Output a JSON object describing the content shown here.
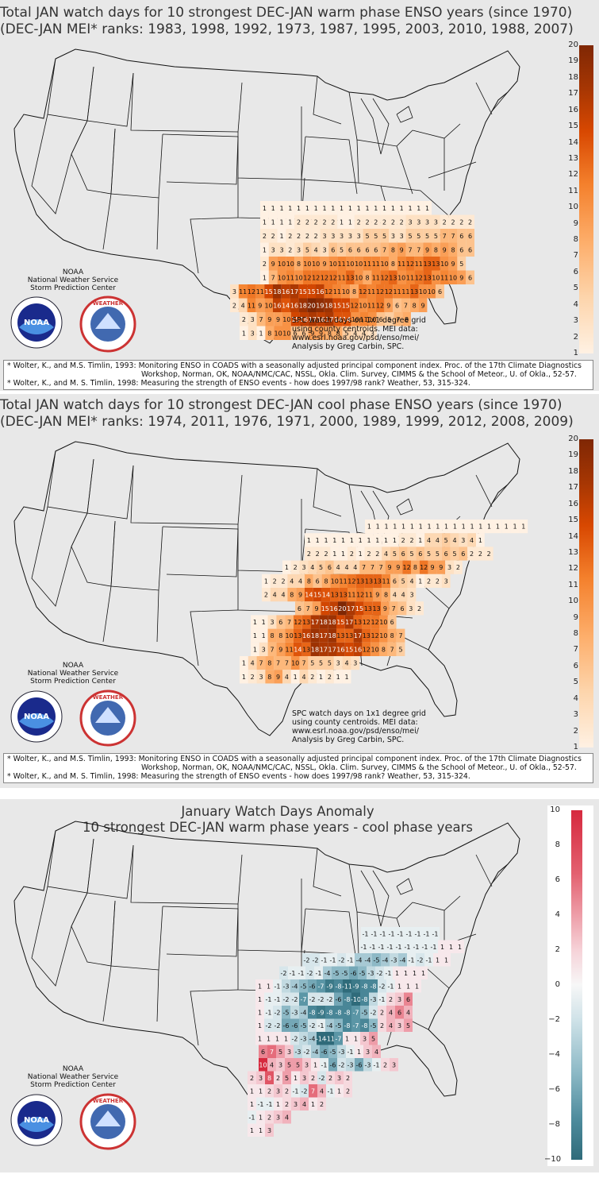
{
  "panels": [
    {
      "title_line1": "Total JAN watch days for 10 strongest DEC-JAN warm phase ENSO years (since 1970)",
      "title_line2": "(DEC-JAN MEI* ranks: 1983, 1998, 1992, 1973, 1987, 1995, 2003, 2010, 1988, 2007)",
      "colorbar_ticks": [
        "20",
        "19",
        "18",
        "17",
        "16",
        "15",
        "14",
        "13",
        "12",
        "11",
        "10",
        "9",
        "8",
        "7",
        "6",
        "5",
        "4",
        "3",
        "2",
        "1"
      ],
      "colormap": [
        "#fff1e3",
        "#fdd5ac",
        "#fdae6b",
        "#f4802c",
        "#d84801",
        "#a63603",
        "#7f2704"
      ],
      "noaa_lines": [
        "NOAA",
        "National Weather Service",
        "Storm Prediction Center"
      ],
      "credit": "SPC watch days on 1x1 degree grid\nusing county centroids. MEI data:\nwww.esrl.noaa.gov/psd/enso/mei/\nAnalysis by Greg Carbin, SPC.",
      "ref1": "* Wolter, K., and M.S. Timlin, 1993: Monitoring ENSO in COADS with a seasonally adjusted principal component index. Proc. of the 17th Climate Diagnostics",
      "ref1b": "Workshop, Norman, OK, NOAA/NMC/CAC, NSSL, Okla. Clim. Survey, CIMMS & the School of Meteor., U. of Okla., 52-57.",
      "ref2": "* Wolter, K., and M. S. Timlin, 1998: Measuring the strength of ENSO events - how does 1997/98 rank? Weather, 53, 315-324.",
      "cells": [
        [
          1,
          1,
          1,
          1,
          1,
          1,
          1,
          1,
          1,
          1,
          1,
          1,
          1,
          1,
          1,
          1,
          1,
          1,
          1,
          1
        ],
        [
          1,
          1,
          1,
          1,
          2,
          2,
          2,
          2,
          2,
          1,
          1,
          2,
          2,
          2,
          2,
          2,
          2,
          3,
          3,
          3,
          3,
          2,
          2,
          2,
          2
        ],
        [
          2,
          2,
          1,
          2,
          2,
          2,
          2,
          3,
          3,
          3,
          3,
          3,
          5,
          5,
          5,
          3,
          3,
          5,
          5,
          5,
          5,
          7,
          7,
          6,
          6
        ],
        [
          1,
          3,
          3,
          2,
          3,
          5,
          4,
          3,
          6,
          5,
          6,
          6,
          6,
          6,
          7,
          8,
          9,
          7,
          7,
          9,
          8,
          9,
          8,
          6,
          6
        ],
        [
          2,
          9,
          10,
          10,
          8,
          10,
          10,
          9,
          10,
          11,
          10,
          10,
          11,
          11,
          10,
          8,
          11,
          12,
          11,
          13,
          13,
          10,
          9,
          5
        ],
        [
          1,
          7,
          10,
          11,
          10,
          12,
          12,
          12,
          12,
          11,
          13,
          10,
          8,
          11,
          12,
          13,
          10,
          11,
          12,
          13,
          10,
          11,
          10,
          9,
          6
        ],
        [
          3,
          11,
          12,
          11,
          15,
          18,
          16,
          17,
          15,
          15,
          16,
          12,
          11,
          10,
          8,
          12,
          11,
          12,
          12,
          11,
          11,
          13,
          10,
          10,
          6
        ],
        [
          2,
          4,
          11,
          9,
          10,
          16,
          14,
          16,
          18,
          20,
          19,
          18,
          15,
          15,
          12,
          10,
          11,
          12,
          9,
          6,
          7,
          8,
          9
        ],
        [
          2,
          3,
          7,
          9,
          9,
          10,
          15,
          16,
          17,
          16,
          17,
          14,
          14,
          10,
          11,
          10,
          6,
          5,
          7,
          8
        ],
        [
          1,
          3,
          1,
          8,
          10,
          10,
          6,
          6,
          9,
          9,
          8,
          8,
          5,
          4,
          4,
          3
        ]
      ]
    },
    {
      "title_line1": "Total JAN watch days for 10 strongest DEC-JAN cool phase ENSO years (since 1970)",
      "title_line2": "(DEC-JAN MEI* ranks: 1974, 2011, 1976, 1971, 2000, 1989, 1999, 2012, 2008, 2009)",
      "colorbar_ticks": [
        "20",
        "19",
        "18",
        "17",
        "16",
        "15",
        "14",
        "13",
        "12",
        "11",
        "10",
        "9",
        "8",
        "7",
        "6",
        "5",
        "4",
        "3",
        "2",
        "1"
      ],
      "colormap": [
        "#fff1e3",
        "#fdd5ac",
        "#fdae6b",
        "#f4802c",
        "#d84801",
        "#a63603",
        "#7f2704"
      ],
      "noaa_lines": [
        "NOAA",
        "National Weather Service",
        "Storm Prediction Center"
      ],
      "credit": "SPC watch days on 1x1 degree grid\nusing county centroids. MEI data:\nwww.esrl.noaa.gov/psd/enso/mei/\nAnalysis by Greg Carbin, SPC.",
      "ref1": "* Wolter, K., and M.S. Timlin, 1993: Monitoring ENSO in COADS with a seasonally adjusted principal component index. Proc. of the 17th Climate Diagnostics",
      "ref1b": "Workshop, Norman, OK, NOAA/NMC/CAC, NSSL, Okla. Clim. Survey, CIMMS & the School of Meteor., U. of Okla., 52-57.",
      "ref2": "* Wolter, K., and M. S. Timlin, 1998: Measuring the strength of ENSO events - how does 1997/98 rank? Weather, 53, 315-324.",
      "cells": [
        [
          1,
          1,
          1,
          1,
          1,
          1,
          1,
          1,
          1,
          1,
          1,
          1,
          1,
          1,
          1,
          1,
          1,
          1,
          1
        ],
        [
          1,
          1,
          1,
          1,
          1,
          1,
          1,
          1,
          1,
          1,
          1,
          2,
          2,
          1,
          4,
          4,
          5,
          4,
          3,
          4,
          1
        ],
        [
          2,
          2,
          2,
          1,
          1,
          2,
          1,
          2,
          2,
          4,
          5,
          6,
          5,
          6,
          5,
          5,
          6,
          5,
          6,
          2,
          2,
          2
        ],
        [
          1,
          2,
          3,
          4,
          5,
          6,
          4,
          4,
          4,
          7,
          7,
          7,
          9,
          9,
          12,
          8,
          12,
          9,
          9,
          3,
          2
        ],
        [
          1,
          2,
          2,
          4,
          4,
          8,
          6,
          8,
          10,
          11,
          12,
          13,
          13,
          13,
          11,
          6,
          5,
          4,
          1,
          2,
          2,
          3
        ],
        [
          2,
          4,
          4,
          8,
          9,
          14,
          15,
          14,
          13,
          13,
          11,
          12,
          11,
          9,
          8,
          4,
          4,
          3
        ],
        [
          6,
          7,
          9,
          15,
          16,
          20,
          17,
          15,
          13,
          13,
          9,
          7,
          6,
          3,
          2
        ],
        [
          1,
          1,
          3,
          6,
          7,
          12,
          13,
          17,
          18,
          18,
          15,
          17,
          13,
          12,
          12,
          10,
          6
        ],
        [
          1,
          1,
          8,
          8,
          10,
          13,
          16,
          18,
          17,
          18,
          13,
          13,
          17,
          13,
          12,
          10,
          8,
          7
        ],
        [
          1,
          3,
          7,
          9,
          11,
          14,
          13,
          18,
          17,
          17,
          16,
          15,
          16,
          12,
          10,
          8,
          7,
          5
        ],
        [
          1,
          4,
          7,
          8,
          7,
          7,
          10,
          7,
          5,
          5,
          5,
          3,
          4,
          3
        ],
        [
          1,
          2,
          3,
          8,
          9,
          4,
          1,
          4,
          2,
          1,
          2,
          1,
          1
        ]
      ]
    },
    {
      "title_line1": "January Watch Days Anomaly",
      "title_line2": "10 strongest DEC-JAN warm phase years - cool phase years",
      "colorbar_ticks": [
        "10",
        "8",
        "6",
        "4",
        "2",
        "0",
        "−2",
        "−4",
        "−6",
        "−8",
        "−10"
      ],
      "colormap_pos": [
        "#f7f7f7",
        "#f6d2d8",
        "#ee9da9",
        "#e3606f",
        "#d6293e"
      ],
      "colormap_neg": [
        "#f7f7f7",
        "#cfe2e8",
        "#8db9c6",
        "#4f8d9e",
        "#2f6b7a"
      ],
      "noaa_lines": [
        "NOAA",
        "National Weather Service",
        "Storm Prediction Center"
      ],
      "cells": [
        [
          -1,
          -1,
          -1,
          -1,
          -1,
          -1,
          -1,
          -1,
          -1
        ],
        [
          -1,
          -1,
          -1,
          -1,
          -1,
          -1,
          -1,
          -1,
          -1,
          1,
          1,
          1
        ],
        [
          -2,
          -2,
          -1,
          -1,
          -2,
          -1,
          -4,
          -4,
          -5,
          -4,
          -3,
          -4,
          -1,
          -2,
          -1,
          1,
          1
        ],
        [
          -2,
          -1,
          -1,
          -2,
          -1,
          -4,
          -5,
          -5,
          -6,
          -5,
          -3,
          -2,
          -1,
          1,
          1,
          1,
          1
        ],
        [
          1,
          1,
          -1,
          -3,
          -4,
          -5,
          -6,
          -7,
          -9,
          -8,
          -11,
          -9,
          -8,
          -8,
          -2,
          -1,
          1,
          1,
          1
        ],
        [
          1,
          -1,
          -1,
          -2,
          -2,
          -7,
          -2,
          -2,
          -2,
          -6,
          -8,
          -10,
          -8,
          -3,
          -1,
          2,
          3,
          6
        ],
        [
          1,
          -1,
          -2,
          -5,
          -3,
          -4,
          -8,
          -9,
          -8,
          -8,
          -8,
          -7,
          -5,
          -2,
          2,
          4,
          6,
          4
        ],
        [
          1,
          -2,
          -2,
          -6,
          -6,
          -5,
          -2,
          -1,
          -4,
          -5,
          -8,
          -7,
          -8,
          -5,
          2,
          4,
          3,
          5
        ],
        [
          1,
          1,
          1,
          1,
          -2,
          -3,
          -4,
          -14,
          -11,
          -7,
          1,
          1,
          3,
          5
        ],
        [
          6,
          7,
          5,
          3,
          -3,
          -2,
          -4,
          -6,
          -5,
          -3,
          -1,
          1,
          3,
          4
        ],
        [
          10,
          4,
          3,
          5,
          5,
          3,
          1,
          -1,
          -6,
          -2,
          -3,
          -6,
          -3,
          -1,
          2,
          3
        ],
        [
          2,
          3,
          8,
          2,
          5,
          1,
          3,
          2,
          -2,
          2,
          3,
          2
        ],
        [
          1,
          1,
          2,
          3,
          2,
          -1,
          -2,
          7,
          4,
          -1,
          1,
          2
        ],
        [
          1,
          -1,
          -1,
          1,
          2,
          3,
          4,
          1,
          2
        ],
        [
          -1,
          1,
          2,
          3,
          4
        ],
        [
          1,
          1,
          3
        ]
      ]
    }
  ],
  "colors": {
    "panel_bg": "#e8e8e8",
    "state_line": "#111111"
  }
}
